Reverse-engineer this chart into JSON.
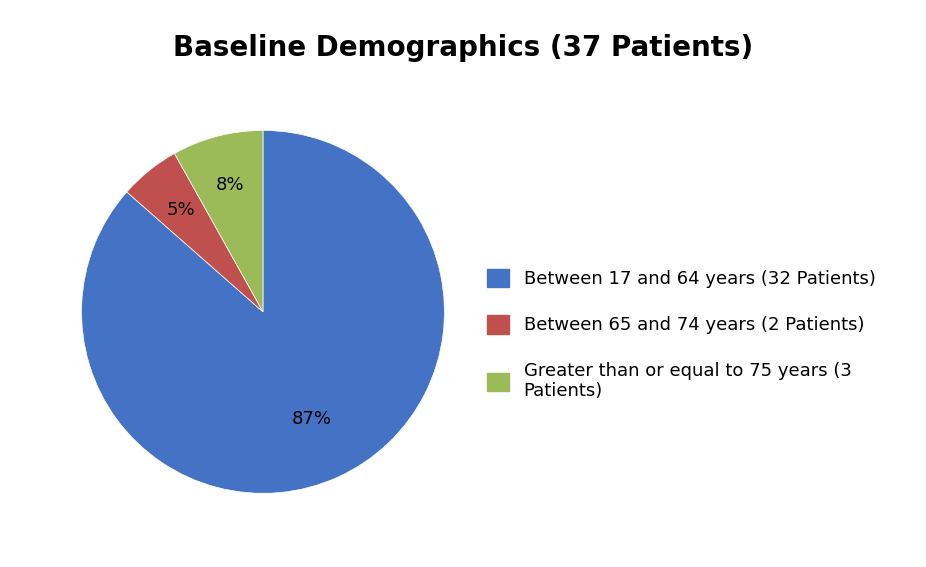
{
  "title": "Baseline Demographics (37 Patients)",
  "title_fontsize": 20,
  "title_fontweight": "bold",
  "slices": [
    32,
    2,
    3
  ],
  "pct_labels": [
    "87%",
    "5%",
    "8%"
  ],
  "colors": [
    "#4472C4",
    "#C0504D",
    "#9BBB59"
  ],
  "legend_labels": [
    "Between 17 and 64 years (32 Patients)",
    "Between 65 and 74 years (2 Patients)",
    "Greater than or equal to 75 years (3\nPatients)"
  ],
  "startangle": 90,
  "background_color": "#FFFFFF",
  "pct_fontsize": 13,
  "legend_fontsize": 13
}
